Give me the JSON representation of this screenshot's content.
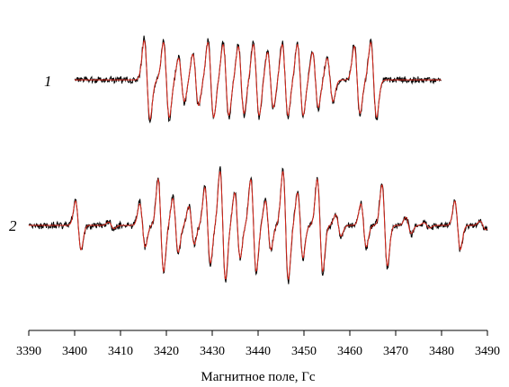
{
  "chart_data": {
    "type": "line",
    "title": "",
    "xlabel": "Магнитное поле, Гс",
    "ylabel": "",
    "xlim": [
      3390,
      3490
    ],
    "x_ticks": [
      3390,
      3400,
      3410,
      3420,
      3430,
      3440,
      3450,
      3460,
      3470,
      3480,
      3490
    ],
    "grid": false,
    "legend": "none",
    "spectra": [
      {
        "label": "1",
        "x_range": [
          3400,
          3480
        ],
        "colors": {
          "experimental": "#000000",
          "simulated": "#d9281c"
        },
        "lines": [
          {
            "center": 3415.8,
            "amp": 1.0
          },
          {
            "center": 3420.0,
            "amp": 0.95
          },
          {
            "center": 3423.3,
            "amp": 0.55
          },
          {
            "center": 3426.4,
            "amp": 0.65
          },
          {
            "center": 3429.7,
            "amp": 0.95
          },
          {
            "center": 3433.0,
            "amp": 0.9
          },
          {
            "center": 3436.3,
            "amp": 0.85
          },
          {
            "center": 3439.6,
            "amp": 0.9
          },
          {
            "center": 3442.7,
            "amp": 0.7
          },
          {
            "center": 3445.9,
            "amp": 0.9
          },
          {
            "center": 3449.2,
            "amp": 0.9
          },
          {
            "center": 3452.5,
            "amp": 0.7
          },
          {
            "center": 3455.7,
            "amp": 0.55
          },
          {
            "center": 3461.6,
            "amp": 0.85
          },
          {
            "center": 3465.2,
            "amp": 0.95
          }
        ]
      },
      {
        "label": "2",
        "x_range": [
          3390,
          3490
        ],
        "colors": {
          "experimental": "#000000",
          "simulated": "#d9281c"
        },
        "lines": [
          {
            "center": 3400.8,
            "amp": 0.45
          },
          {
            "center": 3408.0,
            "amp": 0.06
          },
          {
            "center": 3414.8,
            "amp": 0.4
          },
          {
            "center": 3418.8,
            "amp": 0.85
          },
          {
            "center": 3422.0,
            "amp": 0.5
          },
          {
            "center": 3425.5,
            "amp": 0.35
          },
          {
            "center": 3429.0,
            "amp": 0.7
          },
          {
            "center": 3432.3,
            "amp": 1.0
          },
          {
            "center": 3435.5,
            "amp": 0.6
          },
          {
            "center": 3439.0,
            "amp": 0.85
          },
          {
            "center": 3442.2,
            "amp": 0.45
          },
          {
            "center": 3446.0,
            "amp": 1.0
          },
          {
            "center": 3449.2,
            "amp": 0.6
          },
          {
            "center": 3453.5,
            "amp": 0.85
          },
          {
            "center": 3457.5,
            "amp": 0.2
          },
          {
            "center": 3463.0,
            "amp": 0.4
          },
          {
            "center": 3467.6,
            "amp": 0.75
          },
          {
            "center": 3472.8,
            "amp": 0.15
          },
          {
            "center": 3476.8,
            "amp": 0.05
          },
          {
            "center": 3483.5,
            "amp": 0.45
          },
          {
            "center": 3489.0,
            "amp": 0.08
          }
        ]
      }
    ]
  }
}
